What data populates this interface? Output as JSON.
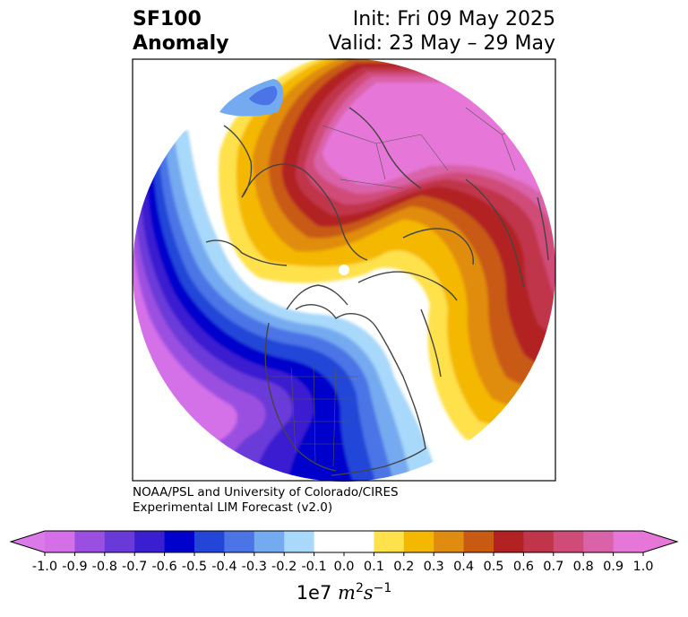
{
  "header": {
    "title_line1": "SF100",
    "title_line2": "Anomaly",
    "init": "Init: Fri 09 May 2025",
    "valid": "Valid: 23 May – 29 May"
  },
  "credit": {
    "line1": "NOAA/PSL and University of Colorado/CIRES",
    "line2": "Experimental LIM Forecast (v2.0)"
  },
  "colorbar": {
    "tick_labels": [
      "-1.0",
      "-0.9",
      "-0.8",
      "-0.7",
      "-0.6",
      "-0.5",
      "-0.4",
      "-0.3",
      "-0.2",
      "-0.1",
      "0.0",
      "0.1",
      "0.2",
      "0.3",
      "0.4",
      "0.5",
      "0.6",
      "0.7",
      "0.8",
      "0.9",
      "1.0"
    ],
    "colors": [
      "#d46fe8",
      "#9b4fe0",
      "#6a3ad8",
      "#3a1fd0",
      "#0000cc",
      "#2446d8",
      "#4b74e6",
      "#74aaf0",
      "#a8d8fa",
      "#ffffff",
      "#ffffff",
      "#ffe14c",
      "#f5b800",
      "#e08c10",
      "#c85a12",
      "#b22222",
      "#c0354a",
      "#d04c78",
      "#d962a8",
      "#e677d8"
    ],
    "under_color": "#d97ae8",
    "over_color": "#e677d8",
    "unit_base": "1e7",
    "unit_m": "m",
    "unit_m_exp": "2",
    "unit_s": "s",
    "unit_s_exp": "−1"
  },
  "map": {
    "projection": "north-polar-stereographic",
    "field": "streamfunction anomaly at 100 hPa"
  }
}
